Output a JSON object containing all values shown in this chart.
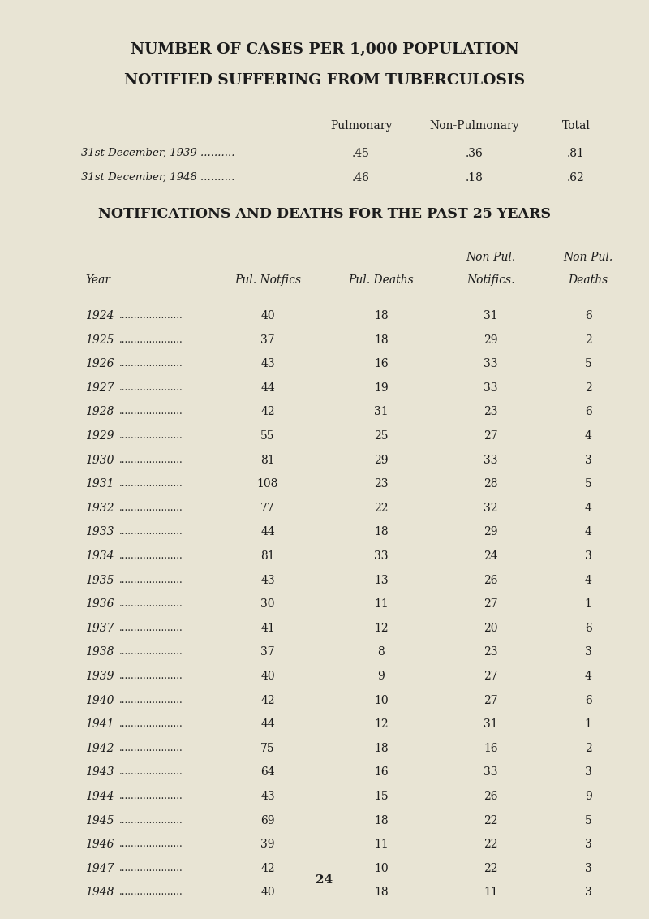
{
  "bg_color": "#e8e4d4",
  "title1": "NUMBER OF CASES PER 1,000 POPULATION",
  "title2": "NOTIFIED SUFFERING FROM TUBERCULOSIS",
  "summary_header": [
    "Pulmonary",
    "Non-Pulmonary",
    "Total"
  ],
  "summary_rows": [
    [
      "31st December, 1939 ..........",
      ".45",
      ".36",
      ".81"
    ],
    [
      "31st December, 1948 ..........",
      ".46",
      ".18",
      ".62"
    ]
  ],
  "section2_title": "NOTIFICATIONS AND DEATHS FOR THE PAST 25 YEARS",
  "table_data": [
    [
      "1924",
      "40",
      "18",
      "31",
      "6"
    ],
    [
      "1925",
      "37",
      "18",
      "29",
      "2"
    ],
    [
      "1926",
      "43",
      "16",
      "33",
      "5"
    ],
    [
      "1927",
      "44",
      "19",
      "33",
      "2"
    ],
    [
      "1928",
      "42",
      "31",
      "23",
      "6"
    ],
    [
      "1929",
      "55",
      "25",
      "27",
      "4"
    ],
    [
      "1930",
      "81",
      "29",
      "33",
      "3"
    ],
    [
      "1931",
      "108",
      "23",
      "28",
      "5"
    ],
    [
      "1932",
      "77",
      "22",
      "32",
      "4"
    ],
    [
      "1933",
      "44",
      "18",
      "29",
      "4"
    ],
    [
      "1934",
      "81",
      "33",
      "24",
      "3"
    ],
    [
      "1935",
      "43",
      "13",
      "26",
      "4"
    ],
    [
      "1936",
      "30",
      "11",
      "27",
      "1"
    ],
    [
      "1937",
      "41",
      "12",
      "20",
      "6"
    ],
    [
      "1938",
      "37",
      "8",
      "23",
      "3"
    ],
    [
      "1939",
      "40",
      "9",
      "27",
      "4"
    ],
    [
      "1940",
      "42",
      "10",
      "27",
      "6"
    ],
    [
      "1941",
      "44",
      "12",
      "31",
      "1"
    ],
    [
      "1942",
      "75",
      "18",
      "16",
      "2"
    ],
    [
      "1943",
      "64",
      "16",
      "33",
      "3"
    ],
    [
      "1944",
      "43",
      "15",
      "26",
      "9"
    ],
    [
      "1945",
      "69",
      "18",
      "22",
      "5"
    ],
    [
      "1946",
      "39",
      "11",
      "22",
      "3"
    ],
    [
      "1947",
      "42",
      "10",
      "22",
      "3"
    ],
    [
      "1948",
      "40",
      "18",
      "11",
      "3"
    ]
  ],
  "page_number": "24",
  "fig_width": 8.0,
  "fig_height": 11.32,
  "text_color": "#1c1c1c"
}
